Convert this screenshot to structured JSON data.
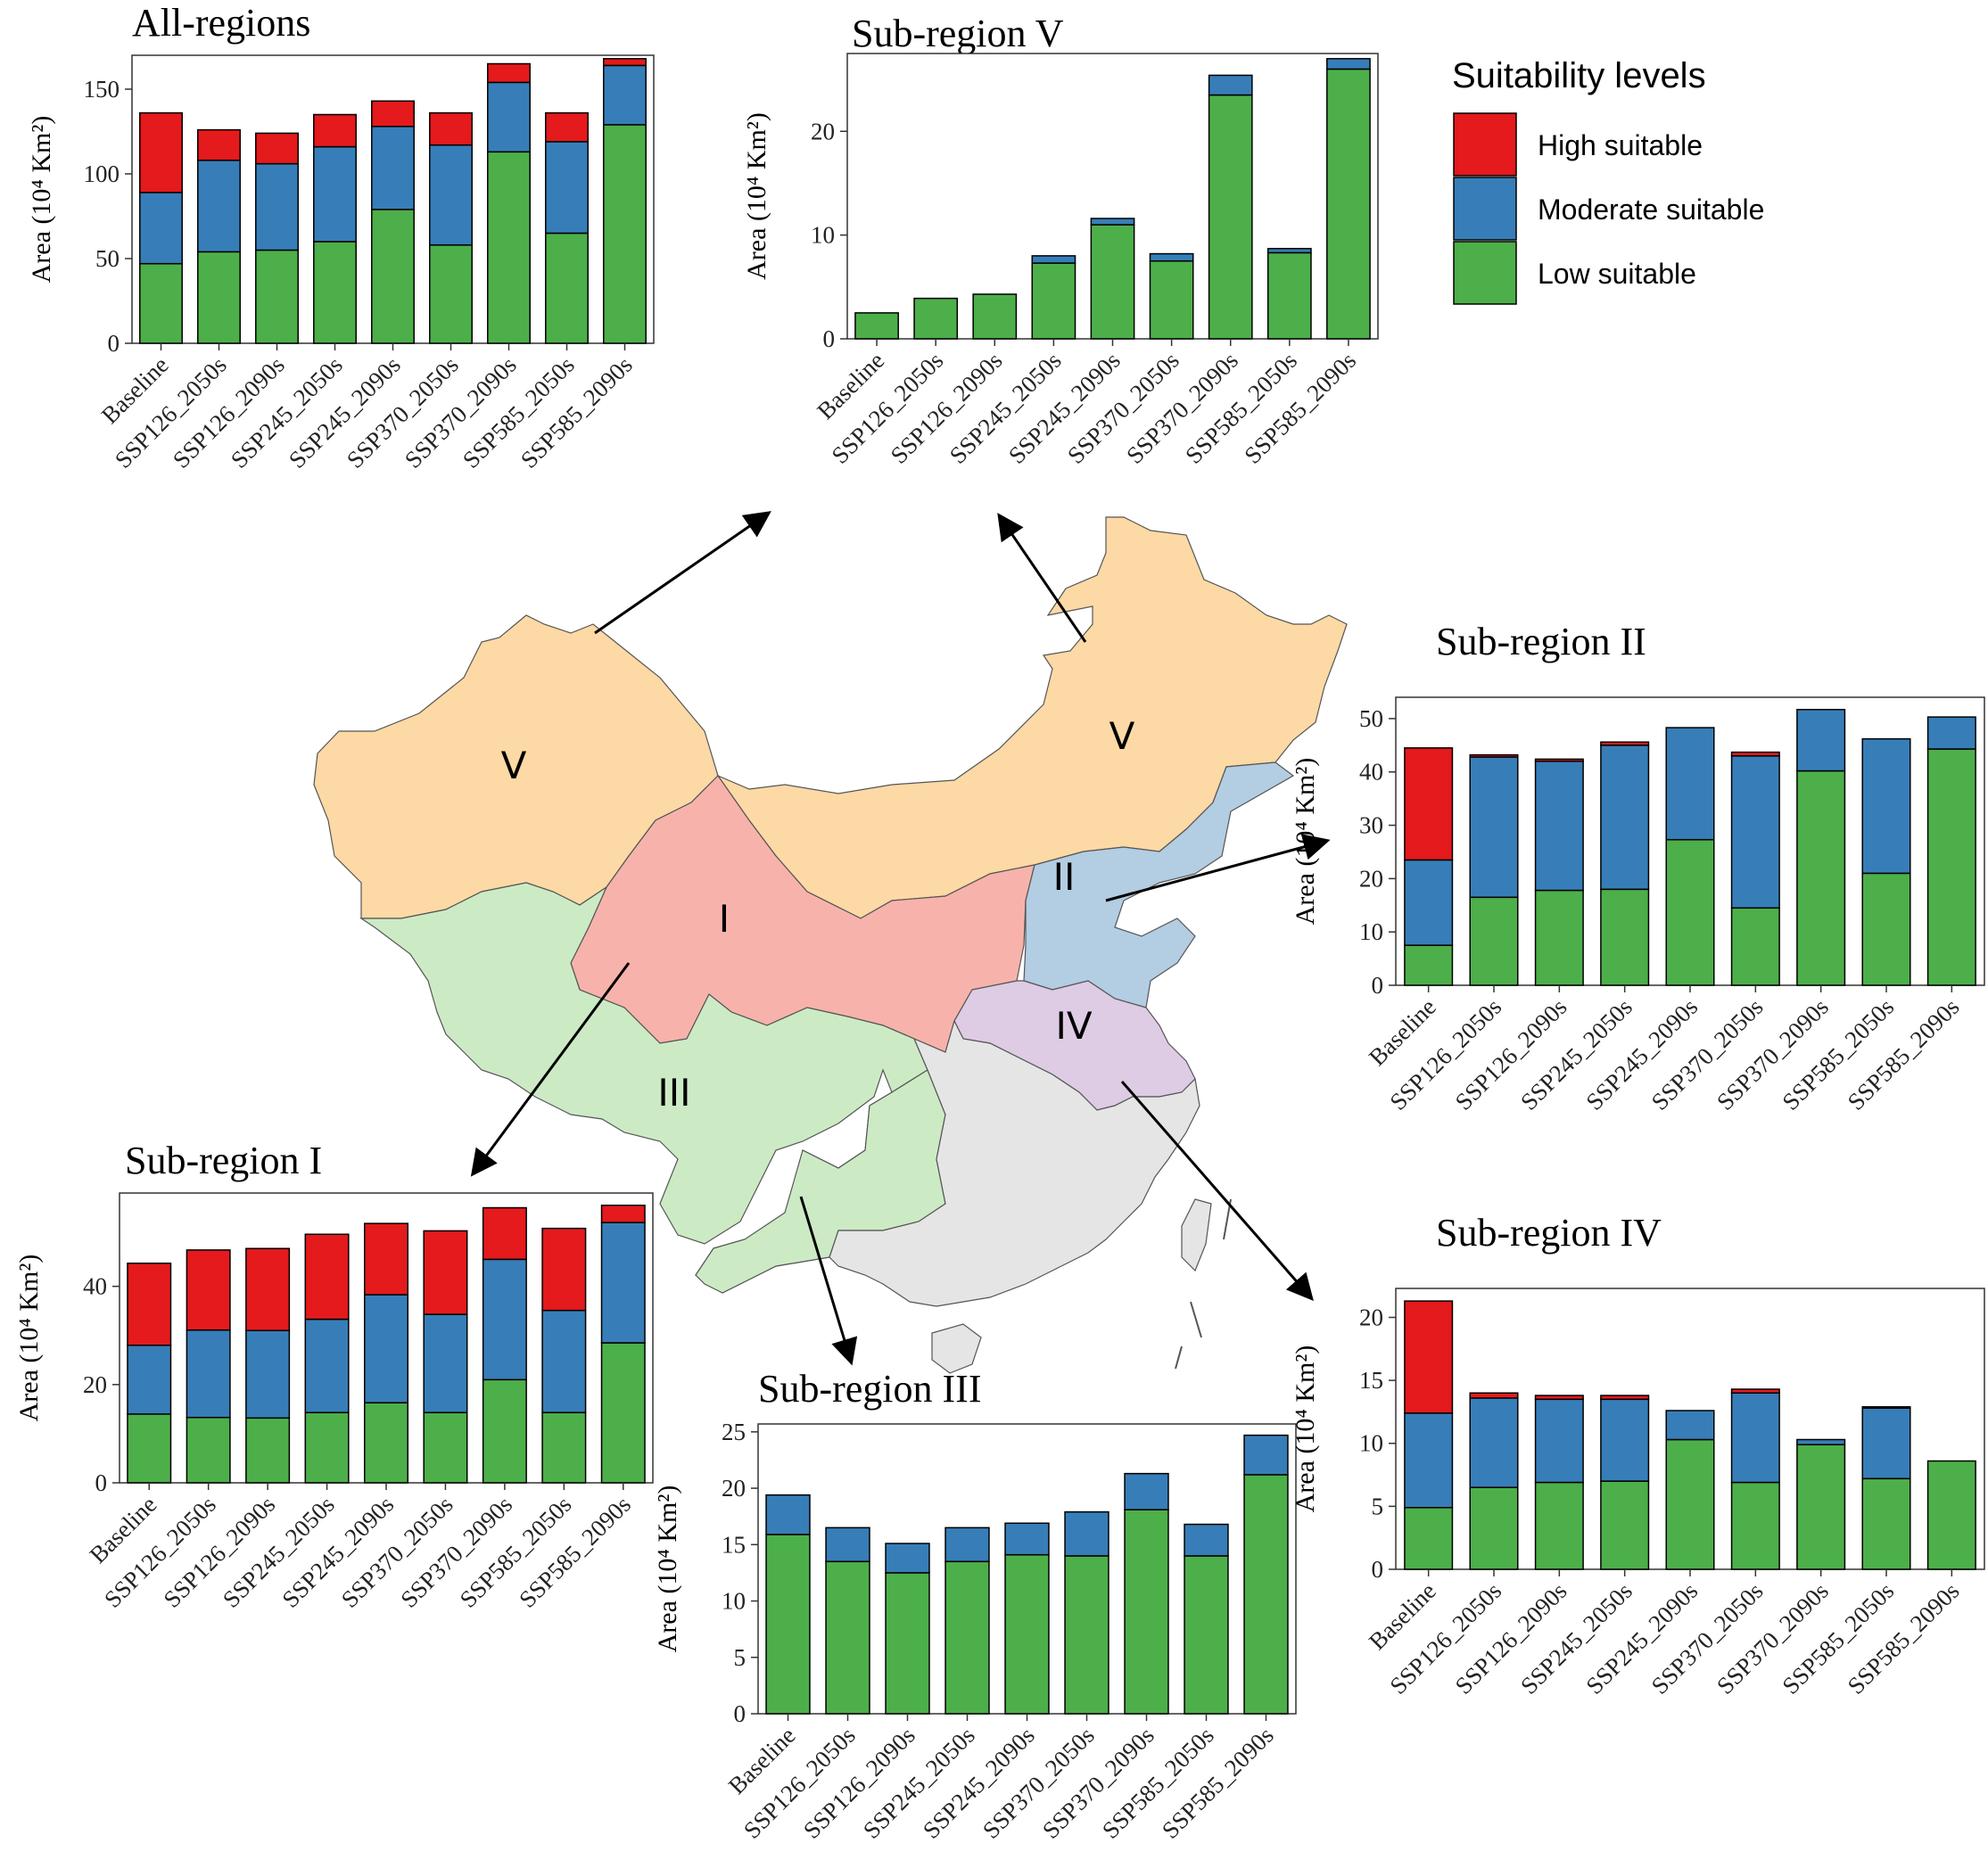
{
  "legend": {
    "title": "Suitability levels",
    "items": [
      {
        "label": "High suitable",
        "color": "#e41a1c"
      },
      {
        "label": "Moderate suitable",
        "color": "#377eb8"
      },
      {
        "label": "Low suitable",
        "color": "#4daf4a"
      }
    ]
  },
  "map": {
    "region_labels": [
      "V",
      "V",
      "I",
      "II",
      "III",
      "IV"
    ],
    "colors": {
      "I": "#f7b3ab",
      "II": "#b3cde3",
      "III": "#ccebc5",
      "IV": "#decbe4",
      "V": "#fdd9a5",
      "other": "#e5e5e5"
    }
  },
  "chart_data": [
    {
      "type": "bar",
      "stacked": true,
      "title": "All-regions",
      "ylabel": "Area (10⁴ Km²)",
      "categories": [
        "Baseline",
        "SSP126_2050s",
        "SSP126_2090s",
        "SSP245_2050s",
        "SSP245_2090s",
        "SSP370_2050s",
        "SSP370_2090s",
        "SSP585_2050s",
        "SSP585_2090s"
      ],
      "ylim": [
        0,
        170
      ],
      "yticks": [
        0,
        50,
        100,
        150
      ],
      "series": [
        {
          "name": "Low suitable",
          "values": [
            47,
            54,
            55,
            60,
            79,
            58,
            113,
            65,
            129
          ]
        },
        {
          "name": "Moderate suitable",
          "values": [
            42,
            54,
            51,
            56,
            49,
            59,
            41,
            54,
            35
          ]
        },
        {
          "name": "High suitable",
          "values": [
            47,
            18,
            18,
            19,
            15,
            19,
            11,
            17,
            4
          ]
        }
      ]
    },
    {
      "type": "bar",
      "stacked": true,
      "title": "Sub-region V",
      "ylabel": "Area (10⁴ Km²)",
      "categories": [
        "Baseline",
        "SSP126_2050s",
        "SSP126_2090s",
        "SSP245_2050s",
        "SSP245_2090s",
        "SSP370_2050s",
        "SSP370_2090s",
        "SSP585_2050s",
        "SSP585_2090s"
      ],
      "ylim": [
        0,
        27.5
      ],
      "yticks": [
        0,
        10,
        20
      ],
      "series": [
        {
          "name": "Low suitable",
          "values": [
            2.5,
            3.9,
            4.3,
            7.3,
            11.0,
            7.5,
            23.5,
            8.3,
            26.0
          ]
        },
        {
          "name": "Moderate suitable",
          "values": [
            0,
            0,
            0,
            0.7,
            0.6,
            0.7,
            1.9,
            0.4,
            1.0
          ]
        },
        {
          "name": "High suitable",
          "values": [
            0,
            0,
            0,
            0,
            0,
            0,
            0,
            0,
            0
          ]
        }
      ]
    },
    {
      "type": "bar",
      "stacked": true,
      "title": "Sub-region II",
      "ylabel": "Area (10⁴ Km²)",
      "categories": [
        "Baseline",
        "SSP126_2050s",
        "SSP126_2090s",
        "SSP245_2050s",
        "SSP245_2090s",
        "SSP370_2050s",
        "SSP370_2090s",
        "SSP585_2050s",
        "SSP585_2090s"
      ],
      "ylim": [
        0,
        54
      ],
      "yticks": [
        0,
        10,
        20,
        30,
        40,
        50
      ],
      "series": [
        {
          "name": "Low suitable",
          "values": [
            7.5,
            16.5,
            17.8,
            18.0,
            27.3,
            14.5,
            40.2,
            21.0,
            44.3
          ]
        },
        {
          "name": "Moderate suitable",
          "values": [
            16.0,
            26.3,
            24.2,
            27.0,
            21.0,
            28.5,
            11.5,
            25.2,
            6.0
          ]
        },
        {
          "name": "High suitable",
          "values": [
            21.0,
            0.4,
            0.4,
            0.6,
            0,
            0.7,
            0,
            0,
            0
          ]
        }
      ]
    },
    {
      "type": "bar",
      "stacked": true,
      "title": "Sub-region I",
      "ylabel": "Area (10⁴ Km²)",
      "categories": [
        "Baseline",
        "SSP126_2050s",
        "SSP126_2090s",
        "SSP245_2050s",
        "SSP245_2090s",
        "SSP370_2050s",
        "SSP370_2090s",
        "SSP585_2050s",
        "SSP585_2090s"
      ],
      "ylim": [
        0,
        59
      ],
      "yticks": [
        0,
        20,
        40
      ],
      "series": [
        {
          "name": "Low suitable",
          "values": [
            14.0,
            13.3,
            13.2,
            14.3,
            16.3,
            14.3,
            21.0,
            14.3,
            28.5
          ]
        },
        {
          "name": "Moderate suitable",
          "values": [
            14.0,
            17.8,
            17.8,
            19.0,
            22.0,
            20.0,
            24.5,
            20.8,
            24.5
          ]
        },
        {
          "name": "High suitable",
          "values": [
            16.7,
            16.3,
            16.7,
            17.3,
            14.5,
            17.0,
            10.5,
            16.7,
            3.5
          ]
        }
      ]
    },
    {
      "type": "bar",
      "stacked": true,
      "title": "Sub-region III",
      "ylabel": "Area (10⁴ Km²)",
      "categories": [
        "Baseline",
        "SSP126_2050s",
        "SSP126_2090s",
        "SSP245_2050s",
        "SSP245_2090s",
        "SSP370_2050s",
        "SSP370_2090s",
        "SSP585_2050s",
        "SSP585_2090s"
      ],
      "ylim": [
        0,
        25.7
      ],
      "yticks": [
        0,
        5,
        10,
        15,
        20,
        25
      ],
      "series": [
        {
          "name": "Low suitable",
          "values": [
            15.9,
            13.5,
            12.5,
            13.5,
            14.1,
            14.0,
            18.1,
            14.0,
            21.2
          ]
        },
        {
          "name": "Moderate suitable",
          "values": [
            3.5,
            3.0,
            2.6,
            3.0,
            2.8,
            3.9,
            3.2,
            2.8,
            3.5
          ]
        },
        {
          "name": "High suitable",
          "values": [
            0,
            0,
            0,
            0,
            0,
            0,
            0,
            0,
            0
          ]
        }
      ]
    },
    {
      "type": "bar",
      "stacked": true,
      "title": "Sub-region IV",
      "ylabel": "Area (10⁴ Km²)",
      "categories": [
        "Baseline",
        "SSP126_2050s",
        "SSP126_2090s",
        "SSP245_2050s",
        "SSP245_2090s",
        "SSP370_2050s",
        "SSP370_2090s",
        "SSP585_2050s",
        "SSP585_2090s"
      ],
      "ylim": [
        0,
        22.3
      ],
      "yticks": [
        0,
        5,
        10,
        15,
        20
      ],
      "series": [
        {
          "name": "Low suitable",
          "values": [
            4.9,
            6.5,
            6.9,
            7.0,
            10.3,
            6.9,
            9.9,
            7.2,
            8.6
          ]
        },
        {
          "name": "Moderate suitable",
          "values": [
            7.5,
            7.1,
            6.6,
            6.5,
            2.3,
            7.1,
            0.4,
            5.6,
            0
          ]
        },
        {
          "name": "High suitable",
          "values": [
            8.9,
            0.4,
            0.3,
            0.3,
            0,
            0.3,
            0,
            0.1,
            0
          ]
        }
      ]
    }
  ]
}
